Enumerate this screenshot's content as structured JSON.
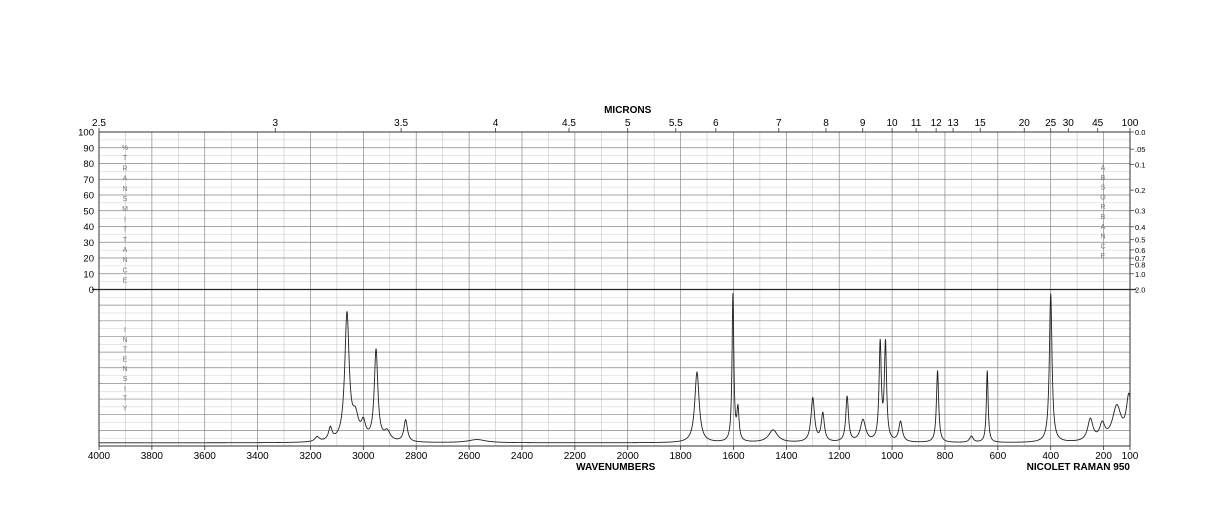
{
  "chart_data": {
    "type": "line",
    "top_axis_title": "MICRONS",
    "micron_ticks": [
      "2.5",
      "3",
      "3.5",
      "4",
      "4.5",
      "5",
      "5.5",
      "6",
      "7",
      "8",
      "9",
      "10",
      "11",
      "12",
      "13",
      "15",
      "20",
      "25",
      "30",
      "45",
      "100"
    ],
    "transmittance_ticks": [
      "100",
      "90",
      "80",
      "70",
      "60",
      "50",
      "40",
      "30",
      "20",
      "10",
      "0"
    ],
    "transmittance_label": [
      "%",
      "T",
      "R",
      "A",
      "N",
      "S",
      "M",
      "I",
      "T",
      "T",
      "A",
      "N",
      "C",
      "E"
    ],
    "absorbance_ticks": [
      {
        "label": "0.0",
        "v": 0.0
      },
      {
        "label": ".05",
        "v": 0.05
      },
      {
        "label": "0.1",
        "v": 0.1
      },
      {
        "label": "0.2",
        "v": 0.2
      },
      {
        "label": "0.3",
        "v": 0.3
      },
      {
        "label": "0.4",
        "v": 0.4
      },
      {
        "label": "0.5",
        "v": 0.5
      },
      {
        "label": "0.6",
        "v": 0.6
      },
      {
        "label": "0.7",
        "v": 0.7
      },
      {
        "label": "0.8",
        "v": 0.8
      },
      {
        "label": "1.0",
        "v": 1.0
      },
      {
        "label": "2.0",
        "v": 2.0
      }
    ],
    "absorbance_label": [
      "A",
      "B",
      "S",
      "O",
      "R",
      "B",
      "A",
      "N",
      "C",
      "E"
    ],
    "intensity_label": [
      "I",
      "N",
      "T",
      "E",
      "N",
      "S",
      "I",
      "T",
      "Y"
    ],
    "x_ticks": [
      4000,
      3800,
      3600,
      3400,
      3200,
      3000,
      2800,
      2600,
      2400,
      2200,
      2000,
      1800,
      1600,
      1400,
      1200,
      1000,
      800,
      600,
      400,
      200,
      100
    ],
    "xlabel": "WAVENUMBERS",
    "footer": "NICOLET RAMAN 950",
    "xlim": [
      4000,
      100
    ],
    "ylim": [
      0,
      100
    ],
    "baseline": 2,
    "series": [
      {
        "peaks": [
          {
            "x": 3175,
            "h": 3,
            "w": 10
          },
          {
            "x": 3125,
            "h": 8,
            "w": 8
          },
          {
            "x": 3062,
            "h": 81,
            "w": 10
          },
          {
            "x": 3030,
            "h": 14,
            "w": 14
          },
          {
            "x": 3000,
            "h": 10,
            "w": 10
          },
          {
            "x": 2952,
            "h": 58,
            "w": 8
          },
          {
            "x": 2910,
            "h": 6,
            "w": 14
          },
          {
            "x": 2840,
            "h": 14,
            "w": 8
          },
          {
            "x": 2570,
            "h": 2,
            "w": 40
          },
          {
            "x": 1738,
            "h": 45,
            "w": 10
          },
          {
            "x": 1602,
            "h": 94,
            "w": 4
          },
          {
            "x": 1583,
            "h": 20,
            "w": 5
          },
          {
            "x": 1450,
            "h": 8,
            "w": 20
          },
          {
            "x": 1300,
            "h": 28,
            "w": 8
          },
          {
            "x": 1262,
            "h": 18,
            "w": 7
          },
          {
            "x": 1170,
            "h": 29,
            "w": 6
          },
          {
            "x": 1110,
            "h": 14,
            "w": 12
          },
          {
            "x": 1045,
            "h": 62,
            "w": 5
          },
          {
            "x": 1025,
            "h": 62,
            "w": 5
          },
          {
            "x": 968,
            "h": 13,
            "w": 8
          },
          {
            "x": 828,
            "h": 46,
            "w": 5
          },
          {
            "x": 640,
            "h": 46,
            "w": 4
          },
          {
            "x": 700,
            "h": 4,
            "w": 8
          },
          {
            "x": 400,
            "h": 95,
            "w": 6
          },
          {
            "x": 250,
            "h": 14,
            "w": 12
          },
          {
            "x": 205,
            "h": 10,
            "w": 12
          },
          {
            "x": 150,
            "h": 22,
            "w": 20
          },
          {
            "x": 104,
            "h": 28,
            "w": 12
          }
        ]
      }
    ]
  }
}
